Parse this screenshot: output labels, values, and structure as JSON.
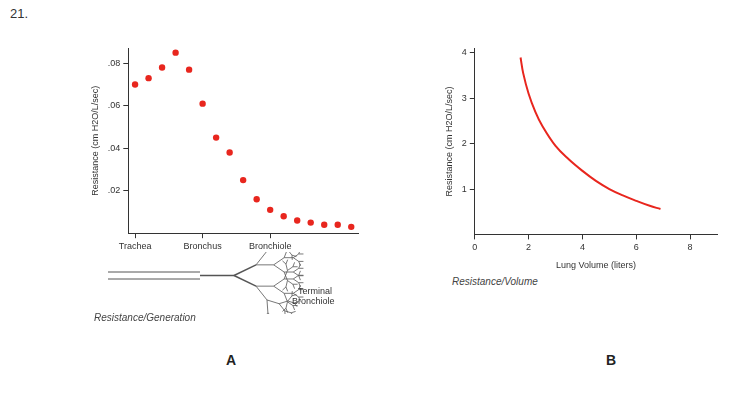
{
  "figure_number": "21.",
  "chart_data": [
    {
      "panel": "A",
      "type": "scatter",
      "title": "Resistance/Generation",
      "y_label": "Resistance (cm H2O/L/sec)",
      "categories": [
        "Trachea",
        null,
        null,
        null,
        null,
        "Bronchus",
        null,
        null,
        null,
        null,
        "Bronchiole",
        null,
        null,
        null,
        null,
        null,
        null
      ],
      "values": [
        0.07,
        0.073,
        0.078,
        0.085,
        0.077,
        0.061,
        0.045,
        0.038,
        0.025,
        0.016,
        0.011,
        0.008,
        0.006,
        0.005,
        0.004,
        0.004,
        0.003
      ],
      "color": "#e8261e",
      "marker": "circle",
      "ylim": [
        0,
        0.087
      ],
      "yticks": [
        {
          "value": 0.02,
          "label": ".02"
        },
        {
          "value": 0.04,
          "label": ".04"
        },
        {
          "value": 0.06,
          "label": ".06"
        },
        {
          "value": 0.08,
          "label": ".08"
        }
      ],
      "grid": false,
      "annotations": [
        "Terminal Bronchiole"
      ]
    },
    {
      "panel": "B",
      "type": "line",
      "title": "Resistance/Volume",
      "x_label": "Lung Volume (liters)",
      "y_label": "Resistance (cm H2O/L/sec)",
      "x": [
        1.7,
        1.8,
        2.0,
        2.25,
        2.5,
        3.0,
        3.5,
        4.0,
        4.5,
        5.0,
        5.5,
        6.0,
        6.5,
        6.9
      ],
      "values": [
        3.9,
        3.55,
        3.1,
        2.7,
        2.4,
        1.95,
        1.65,
        1.4,
        1.18,
        1.0,
        0.86,
        0.74,
        0.63,
        0.56
      ],
      "color": "#e8261e",
      "marker": "none",
      "xlim": [
        0,
        9
      ],
      "xticks": [
        0,
        2,
        4,
        6,
        8
      ],
      "ylim": [
        0,
        4.1
      ],
      "yticks": [
        1,
        2,
        3,
        4
      ],
      "grid": false
    }
  ]
}
